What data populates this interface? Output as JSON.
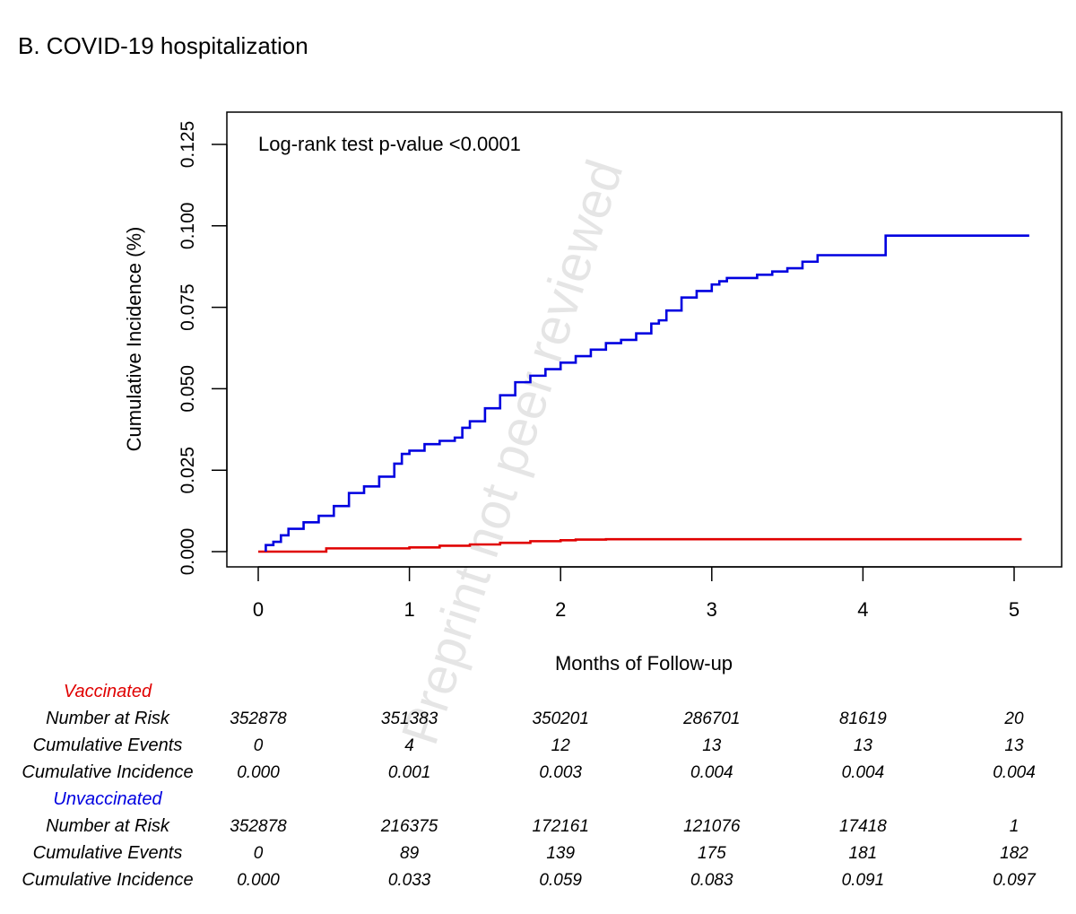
{
  "chart_data": {
    "type": "line",
    "panel_title": "B.  COVID-19 hospitalization",
    "annotation": "Log-rank test p-value <0.0001",
    "watermark": "Preprint not peer reviewed",
    "xlabel": "Months of Follow-up",
    "ylabel": "Cumulative Incidence (%)",
    "xlim": [
      0,
      5.1
    ],
    "ylim": [
      -0.005,
      0.13
    ],
    "x_ticks": [
      "0",
      "1",
      "2",
      "3",
      "4",
      "5"
    ],
    "y_ticks": [
      "0.000",
      "0.025",
      "0.050",
      "0.075",
      "0.100",
      "0.125"
    ],
    "series": [
      {
        "name": "Vaccinated",
        "color": "#e00000",
        "points": [
          [
            0,
            0
          ],
          [
            0.45,
            0.0005
          ],
          [
            0.45,
            0.001
          ],
          [
            1.0,
            0.001
          ],
          [
            1.0,
            0.0013
          ],
          [
            1.2,
            0.0015
          ],
          [
            1.2,
            0.0018
          ],
          [
            1.4,
            0.002
          ],
          [
            1.4,
            0.0022
          ],
          [
            1.6,
            0.0025
          ],
          [
            1.6,
            0.0027
          ],
          [
            1.8,
            0.003
          ],
          [
            1.8,
            0.0032
          ],
          [
            2.0,
            0.0033
          ],
          [
            2.0,
            0.0035
          ],
          [
            2.1,
            0.0035
          ],
          [
            2.1,
            0.0037
          ],
          [
            2.3,
            0.0037
          ],
          [
            2.3,
            0.0038
          ],
          [
            3.0,
            0.0038
          ],
          [
            5.05,
            0.0038
          ]
        ]
      },
      {
        "name": "Unvaccinated",
        "color": "#0000e0",
        "points": [
          [
            0.05,
            0
          ],
          [
            0.05,
            0.002
          ],
          [
            0.1,
            0.003
          ],
          [
            0.15,
            0.005
          ],
          [
            0.2,
            0.007
          ],
          [
            0.3,
            0.009
          ],
          [
            0.4,
            0.011
          ],
          [
            0.5,
            0.014
          ],
          [
            0.6,
            0.018
          ],
          [
            0.7,
            0.02
          ],
          [
            0.8,
            0.023
          ],
          [
            0.9,
            0.027
          ],
          [
            0.95,
            0.03
          ],
          [
            1.0,
            0.031
          ],
          [
            1.1,
            0.033
          ],
          [
            1.2,
            0.034
          ],
          [
            1.3,
            0.035
          ],
          [
            1.35,
            0.038
          ],
          [
            1.4,
            0.04
          ],
          [
            1.5,
            0.044
          ],
          [
            1.6,
            0.048
          ],
          [
            1.7,
            0.052
          ],
          [
            1.8,
            0.054
          ],
          [
            1.9,
            0.056
          ],
          [
            2.0,
            0.058
          ],
          [
            2.1,
            0.06
          ],
          [
            2.2,
            0.062
          ],
          [
            2.3,
            0.064
          ],
          [
            2.4,
            0.065
          ],
          [
            2.5,
            0.067
          ],
          [
            2.6,
            0.07
          ],
          [
            2.65,
            0.071
          ],
          [
            2.7,
            0.074
          ],
          [
            2.8,
            0.078
          ],
          [
            2.9,
            0.08
          ],
          [
            3.0,
            0.082
          ],
          [
            3.05,
            0.083
          ],
          [
            3.1,
            0.084
          ],
          [
            3.2,
            0.084
          ],
          [
            3.3,
            0.085
          ],
          [
            3.4,
            0.086
          ],
          [
            3.5,
            0.087
          ],
          [
            3.6,
            0.089
          ],
          [
            3.7,
            0.091
          ],
          [
            4.0,
            0.091
          ],
          [
            4.15,
            0.091
          ],
          [
            4.15,
            0.097
          ],
          [
            5.1,
            0.097
          ]
        ]
      }
    ],
    "risk_table": {
      "columns_x": [
        0,
        1,
        2,
        3,
        4,
        5
      ],
      "groups": [
        {
          "name": "Vaccinated",
          "color": "#e00000",
          "rows": [
            {
              "label": "Number at Risk",
              "values": [
                "352878",
                "351383",
                "350201",
                "286701",
                "81619",
                "20"
              ]
            },
            {
              "label": "Cumulative Events",
              "values": [
                "0",
                "4",
                "12",
                "13",
                "13",
                "13"
              ]
            },
            {
              "label": "Cumulative Incidence",
              "values": [
                "0.000",
                "0.001",
                "0.003",
                "0.004",
                "0.004",
                "0.004"
              ]
            }
          ]
        },
        {
          "name": "Unvaccinated",
          "color": "#0000e0",
          "rows": [
            {
              "label": "Number at Risk",
              "values": [
                "352878",
                "216375",
                "172161",
                "121076",
                "17418",
                "1"
              ]
            },
            {
              "label": "Cumulative Events",
              "values": [
                "0",
                "89",
                "139",
                "175",
                "181",
                "182"
              ]
            },
            {
              "label": "Cumulative Incidence",
              "values": [
                "0.000",
                "0.033",
                "0.059",
                "0.083",
                "0.091",
                "0.097"
              ]
            }
          ]
        }
      ]
    }
  }
}
